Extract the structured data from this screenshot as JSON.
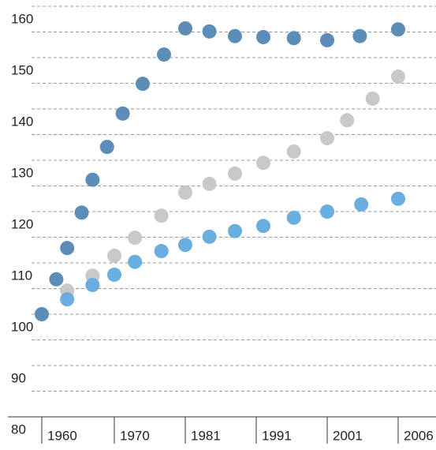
{
  "chart_data": {
    "type": "scatter",
    "ylim": [
      80,
      160
    ],
    "yticks": [
      80,
      90,
      100,
      110,
      120,
      130,
      140,
      150,
      160
    ],
    "minor_yticks": [
      85,
      95,
      105,
      115,
      125,
      135,
      145,
      155
    ],
    "grid": true,
    "xticks": [
      1960,
      1970,
      1981,
      1991,
      2001,
      2006
    ],
    "series": [
      {
        "color": "#5b8db8",
        "x": [
          1960,
          1962,
          1963.5,
          1965.5,
          1967,
          1969,
          1971.3,
          1974.4,
          1977.7,
          1981,
          1984.4,
          1988,
          1992,
          1996.3,
          2001,
          2003.3,
          2006
        ],
        "values": [
          100,
          106.8,
          112.9,
          119.8,
          126.2,
          132.6,
          139.1,
          144.9,
          150.6,
          155.7,
          155.1,
          154.2,
          154.0,
          153.8,
          153.4,
          154.2,
          155.5
        ]
      },
      {
        "color": "#c8c8c8",
        "x": [
          1963.5,
          1967,
          1970,
          1973.2,
          1977.3,
          1981,
          1984.4,
          1988,
          1992,
          1996.3,
          2001,
          2002.4,
          2004.2,
          2006
        ],
        "values": [
          104.6,
          107.5,
          111.4,
          114.9,
          119.2,
          123.7,
          125.4,
          127.4,
          129.5,
          131.7,
          134.3,
          137.8,
          142.0,
          146.3
        ]
      },
      {
        "color": "#6aaee0",
        "x": [
          1963.5,
          1967,
          1970,
          1973.2,
          1977.3,
          1981,
          1984.4,
          1988,
          1992,
          1996.3,
          2001,
          2003.4,
          2006
        ],
        "values": [
          102.9,
          105.7,
          107.7,
          110.2,
          112.3,
          113.5,
          115.1,
          116.2,
          117.2,
          118.8,
          120.0,
          121.4,
          122.5
        ]
      }
    ]
  }
}
